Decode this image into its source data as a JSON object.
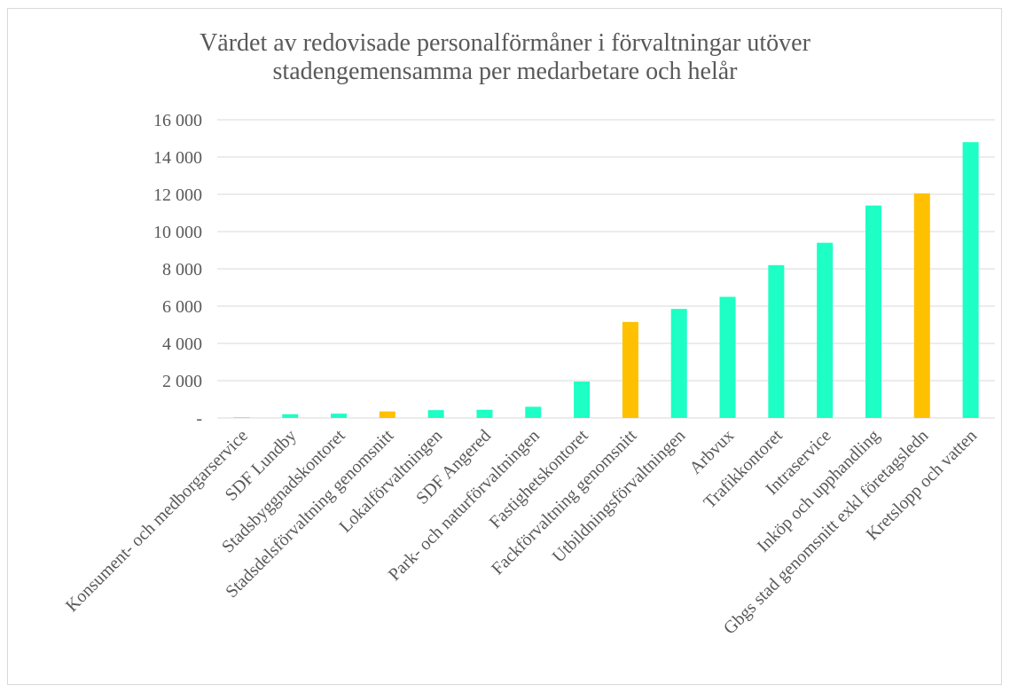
{
  "chart_data": {
    "type": "bar",
    "title_lines": [
      "Värdet av redovisade personalförmåner i förvaltningar utöver",
      "stadengemensamma per medarbetare och helår"
    ],
    "categories": [
      "Konsument- och medborgarservice",
      "SDF Lundby",
      "Stadsbyggnadskontoret",
      "Stadsdelsförvaltning genomsnitt",
      "Lokalförvaltningen",
      "SDF Angered",
      "Park- och naturförvaltningen",
      "Fastighetskontoret",
      "Fackförvaltning genomsnitt",
      "Utbildningsförvaltningen",
      "Arbvux",
      "Trafikkontoret",
      "Intraservice",
      "Inköp och upphandling",
      "Gbgs stad genomsnitt exkl företagsledn",
      "Kretslopp och vatten"
    ],
    "values": [
      30,
      200,
      230,
      350,
      420,
      440,
      600,
      1950,
      5150,
      5850,
      6500,
      8200,
      9400,
      11400,
      12050,
      14800
    ],
    "highlight": [
      false,
      false,
      false,
      true,
      false,
      false,
      false,
      false,
      true,
      false,
      false,
      false,
      false,
      false,
      true,
      false
    ],
    "colors": {
      "default": "#1dffc4",
      "highlight": "#ffc000"
    },
    "ylim": [
      0,
      16000
    ],
    "yticks": [
      0,
      2000,
      4000,
      6000,
      8000,
      10000,
      12000,
      14000,
      16000
    ],
    "ytick_labels": [
      "-",
      "2 000",
      "4 000",
      "6 000",
      "8 000",
      "10 000",
      "12 000",
      "14 000",
      "16 000"
    ],
    "grid": true,
    "legend": "none"
  }
}
